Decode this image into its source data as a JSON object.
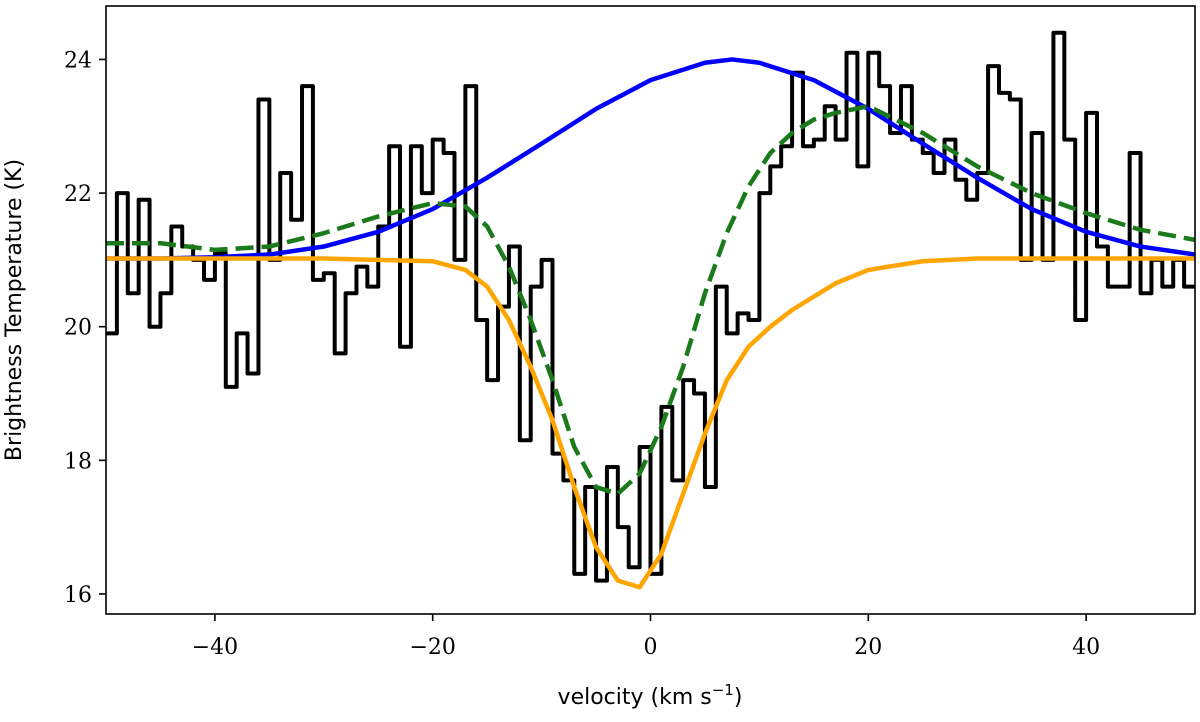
{
  "chart_data": {
    "type": "line",
    "xlabel": "velocity (km s",
    "xlabel_sup": "−1",
    "xlabel_end": ")",
    "ylabel": "Brightness Temperature (K)",
    "xlim": [
      -50,
      50
    ],
    "ylim": [
      15.7,
      24.8
    ],
    "xticks": [
      -40,
      -20,
      0,
      20,
      40
    ],
    "xtick_labels": [
      "−40",
      "−20",
      "0",
      "20",
      "40"
    ],
    "yticks": [
      16,
      18,
      20,
      22,
      24
    ],
    "ytick_labels": [
      "16",
      "18",
      "20",
      "22",
      "24"
    ],
    "grid": false,
    "colors": {
      "observed": "#000000",
      "emission_model": "#0000ff",
      "absorption_model": "#ffa500",
      "combined_model": "#1b7a1b"
    },
    "series": [
      {
        "style": "step",
        "color": "#000000",
        "x": [
          -50.0,
          -49.0,
          -48.0,
          -47.0,
          -46.0,
          -45.0,
          -44.0,
          -43.0,
          -42.0,
          -41.0,
          -40.0,
          -39.0,
          -38.0,
          -37.0,
          -36.0,
          -35.0,
          -34.0,
          -33.0,
          -32.0,
          -31.0,
          -30.0,
          -29.0,
          -28.0,
          -27.0,
          -26.0,
          -25.0,
          -24.0,
          -23.0,
          -22.0,
          -21.0,
          -20.0,
          -19.0,
          -18.0,
          -17.0,
          -16.0,
          -15.0,
          -14.0,
          -13.0,
          -12.0,
          -11.0,
          -10.0,
          -9.0,
          -8.0,
          -7.0,
          -6.0,
          -5.0,
          -4.0,
          -3.0,
          -2.0,
          -1.0,
          0.0,
          1.0,
          2.0,
          3.0,
          4.0,
          5.0,
          6.0,
          7.0,
          8.0,
          9.0,
          10.0,
          11.0,
          12.0,
          13.0,
          14.0,
          15.0,
          16.0,
          17.0,
          18.0,
          19.0,
          20.0,
          21.0,
          22.0,
          23.0,
          24.0,
          25.0,
          26.0,
          27.0,
          28.0,
          29.0,
          30.0,
          31.0,
          32.0,
          33.0,
          34.0,
          35.0,
          36.0,
          37.0,
          38.0,
          39.0,
          40.0,
          41.0,
          42.0,
          43.0,
          44.0,
          45.0,
          46.0,
          47.0,
          48.0,
          49.0,
          50.0
        ],
        "y": [
          19.9,
          22.0,
          20.5,
          21.9,
          20.0,
          20.5,
          21.5,
          21.2,
          21.0,
          20.7,
          21.1,
          19.1,
          19.9,
          19.3,
          23.4,
          21.0,
          22.3,
          21.6,
          23.6,
          20.7,
          20.8,
          19.6,
          20.5,
          20.9,
          20.6,
          21.5,
          22.7,
          19.7,
          22.7,
          22.0,
          22.8,
          22.6,
          21.0,
          23.6,
          20.1,
          19.2,
          20.3,
          21.2,
          18.3,
          20.6,
          21.0,
          18.1,
          17.7,
          16.3,
          17.6,
          16.2,
          17.9,
          17.0,
          16.4,
          18.2,
          16.3,
          18.8,
          17.7,
          19.2,
          19.0,
          17.6,
          20.6,
          19.9,
          20.2,
          20.1,
          22.0,
          22.4,
          22.7,
          23.8,
          22.7,
          22.8,
          23.3,
          22.8,
          24.1,
          22.4,
          24.1,
          23.6,
          22.9,
          23.6,
          22.8,
          22.6,
          22.3,
          22.8,
          22.2,
          21.9,
          22.3,
          23.9,
          23.5,
          23.4,
          21.0,
          22.9,
          21.0,
          24.4,
          22.8,
          20.1,
          23.2,
          21.2,
          20.6,
          20.6,
          22.6,
          20.5,
          21.0,
          20.6,
          21.0,
          20.6,
          20.6
        ]
      },
      {
        "style": "solid",
        "color": "#0000ff",
        "x": [
          -50,
          -45,
          -40,
          -35,
          -30,
          -25,
          -20,
          -15,
          -10,
          -5,
          0,
          5,
          7.5,
          10,
          15,
          20,
          25,
          30,
          35,
          40,
          45,
          50
        ],
        "y": [
          21.02,
          21.02,
          21.04,
          21.08,
          21.2,
          21.42,
          21.76,
          22.23,
          22.74,
          23.26,
          23.69,
          23.95,
          24.0,
          23.95,
          23.69,
          23.26,
          22.74,
          22.23,
          21.76,
          21.42,
          21.2,
          21.08
        ]
      },
      {
        "style": "solid",
        "color": "#ffa500",
        "x": [
          -50,
          -30,
          -20,
          -17,
          -15,
          -13,
          -11,
          -9,
          -7,
          -5,
          -3,
          -1,
          1,
          3,
          5,
          7,
          9,
          11,
          13,
          15,
          17,
          20,
          25,
          30,
          35,
          40,
          45,
          50
        ],
        "y": [
          21.02,
          21.02,
          20.98,
          20.85,
          20.6,
          20.1,
          19.4,
          18.6,
          17.6,
          16.7,
          16.2,
          16.1,
          16.6,
          17.5,
          18.4,
          19.2,
          19.7,
          20.0,
          20.25,
          20.45,
          20.65,
          20.85,
          20.98,
          21.02,
          21.02,
          21.02,
          21.02,
          21.02
        ]
      },
      {
        "style": "dashed",
        "color": "#1b7a1b",
        "x": [
          -50,
          -45,
          -40,
          -35,
          -30,
          -25,
          -20,
          -17,
          -15,
          -13,
          -11,
          -9,
          -7,
          -5,
          -3,
          -1,
          1,
          3,
          5,
          7,
          9,
          11,
          13,
          15,
          17,
          20,
          25,
          30,
          35,
          40,
          45,
          50
        ],
        "y": [
          21.25,
          21.25,
          21.15,
          21.2,
          21.4,
          21.65,
          21.85,
          21.8,
          21.5,
          20.9,
          20.1,
          19.2,
          18.2,
          17.6,
          17.5,
          17.8,
          18.5,
          19.4,
          20.5,
          21.4,
          22.1,
          22.6,
          22.9,
          23.1,
          23.2,
          23.3,
          22.9,
          22.4,
          22.0,
          21.7,
          21.45,
          21.3
        ]
      }
    ]
  }
}
